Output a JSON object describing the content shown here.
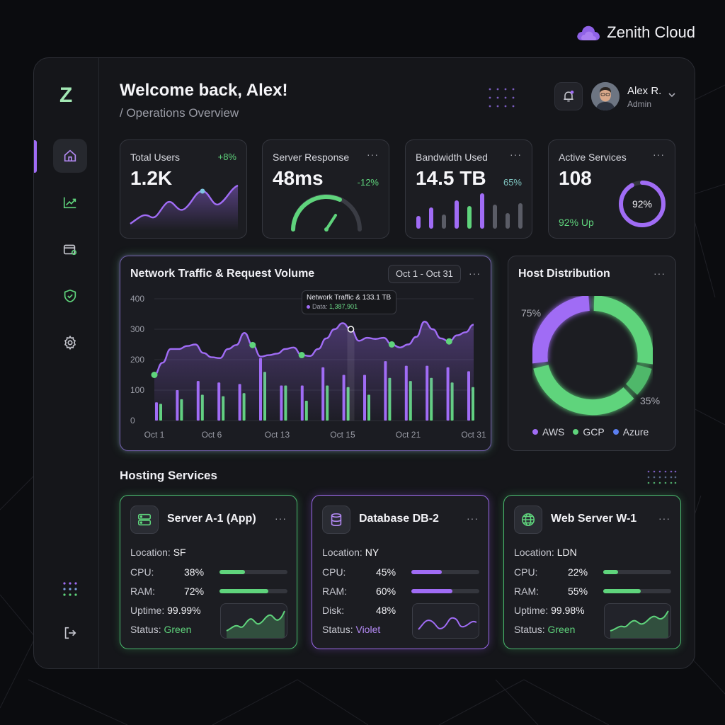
{
  "brand": {
    "title": "Zenith Cloud"
  },
  "sidebar": {
    "logo": "Z",
    "items": [
      {
        "name": "home",
        "icon": "home-icon",
        "active": true
      },
      {
        "name": "analytics",
        "icon": "chart-line-icon",
        "active": false
      },
      {
        "name": "billing",
        "icon": "wallet-icon",
        "active": false
      },
      {
        "name": "security",
        "icon": "shield-check-icon",
        "active": false
      },
      {
        "name": "settings",
        "icon": "gear-icon",
        "active": false
      }
    ],
    "bottom": [
      {
        "name": "apps",
        "icon": "grid-dots-icon"
      },
      {
        "name": "logout",
        "icon": "logout-icon"
      }
    ]
  },
  "header": {
    "welcome": "Welcome back, Alex!",
    "breadcrumb": "/ Operations Overview"
  },
  "user": {
    "name": "Alex R.",
    "role": "Admin"
  },
  "stats": [
    {
      "title": "Total Users",
      "value": "1.2K",
      "delta": "+8%",
      "delta_color": "#5fd47c"
    },
    {
      "title": "Server Response",
      "value": "48ms",
      "delta": "-12%",
      "delta_color": "#5fd47c",
      "more": "···"
    },
    {
      "title": "Bandwidth Used",
      "value": "14.5 TB",
      "delta": "65%",
      "delta_color": "#7fc4c0",
      "more": "···"
    },
    {
      "title": "Active Services",
      "value": "108",
      "subtext": "92% Up",
      "ring_label": "92%",
      "ring_value": 0.92,
      "more": "···"
    }
  ],
  "traffic": {
    "title": "Network Traffic & Request Volume",
    "date_range": "Oct 1 - Oct 31",
    "more": "···",
    "tooltip": {
      "title": "Network Traffic & 133.1 TB",
      "label": "Data:",
      "value": "1,387,901"
    }
  },
  "host": {
    "title": "Host Distribution",
    "more": "···",
    "label_top": "75%",
    "label_bottom": "35%",
    "legend": [
      {
        "name": "AWS",
        "color": "#a06cf5"
      },
      {
        "name": "GCP",
        "color": "#5fd47c"
      },
      {
        "name": "Azure",
        "color": "#5b7ff0"
      }
    ]
  },
  "chart_data": {
    "type": "line",
    "title": "Network Traffic & Request Volume",
    "xlabel": "",
    "ylabel": "",
    "ylim": [
      0,
      400
    ],
    "yticks": [
      "0",
      "100",
      "200",
      "300",
      "400"
    ],
    "xtick_labels": [
      "Oct 1",
      "Oct 6",
      "Oct 13",
      "Oct 15",
      "Oct 21",
      "Oct 31"
    ],
    "xtick_index": [
      0,
      7,
      15,
      23,
      31,
      39
    ],
    "line": [
      150,
      190,
      235,
      235,
      245,
      250,
      222,
      208,
      205,
      235,
      248,
      288,
      248,
      210,
      215,
      220,
      235,
      240,
      215,
      212,
      235,
      270,
      300,
      320,
      300,
      262,
      272,
      268,
      272,
      250,
      240,
      250,
      275,
      325,
      300,
      270,
      260,
      280,
      290,
      315
    ],
    "line_markers": [
      0,
      12,
      18,
      24,
      29,
      36
    ],
    "highlight_index": 24,
    "bars_purple": [
      60,
      100,
      130,
      125,
      120,
      205,
      115,
      115,
      175,
      150,
      150,
      195,
      180,
      180,
      175,
      162
    ],
    "bars_green": [
      55,
      70,
      85,
      80,
      90,
      160,
      115,
      65,
      115,
      110,
      85,
      140,
      130,
      140,
      125,
      110
    ]
  },
  "section": {
    "title": "Hosting Services"
  },
  "services": [
    {
      "name": "Server A-1 (App)",
      "icon": "server-icon",
      "more": "···",
      "location_label": "Location:",
      "location": "SF",
      "metrics": [
        {
          "label": "CPU:",
          "value": "38%",
          "pct": 0.38
        },
        {
          "label": "RAM:",
          "value": "72%",
          "pct": 0.72
        }
      ],
      "extra_label": "Uptime:",
      "extra_value": "99.99%",
      "status_label": "Status:",
      "status": "Green",
      "color": "#5fd47c"
    },
    {
      "name": "Database DB-2",
      "icon": "database-icon",
      "more": "···",
      "location_label": "Location:",
      "location": "NY",
      "metrics": [
        {
          "label": "CPU:",
          "value": "45%",
          "pct": 0.45
        },
        {
          "label": "RAM:",
          "value": "60%",
          "pct": 0.6
        }
      ],
      "extra_label": "Disk:",
      "extra_value": "48%",
      "status_label": "Status:",
      "status": "Violet",
      "color": "#a06cf5"
    },
    {
      "name": "Web Server W-1",
      "icon": "globe-icon",
      "more": "···",
      "location_label": "Location:",
      "location": "LDN",
      "metrics": [
        {
          "label": "CPU:",
          "value": "22%",
          "pct": 0.22
        },
        {
          "label": "RAM:",
          "value": "55%",
          "pct": 0.55
        }
      ],
      "extra_label": "Uptime:",
      "extra_value": "99.98%",
      "status_label": "Status:",
      "status": "Green",
      "color": "#5fd47c"
    }
  ]
}
